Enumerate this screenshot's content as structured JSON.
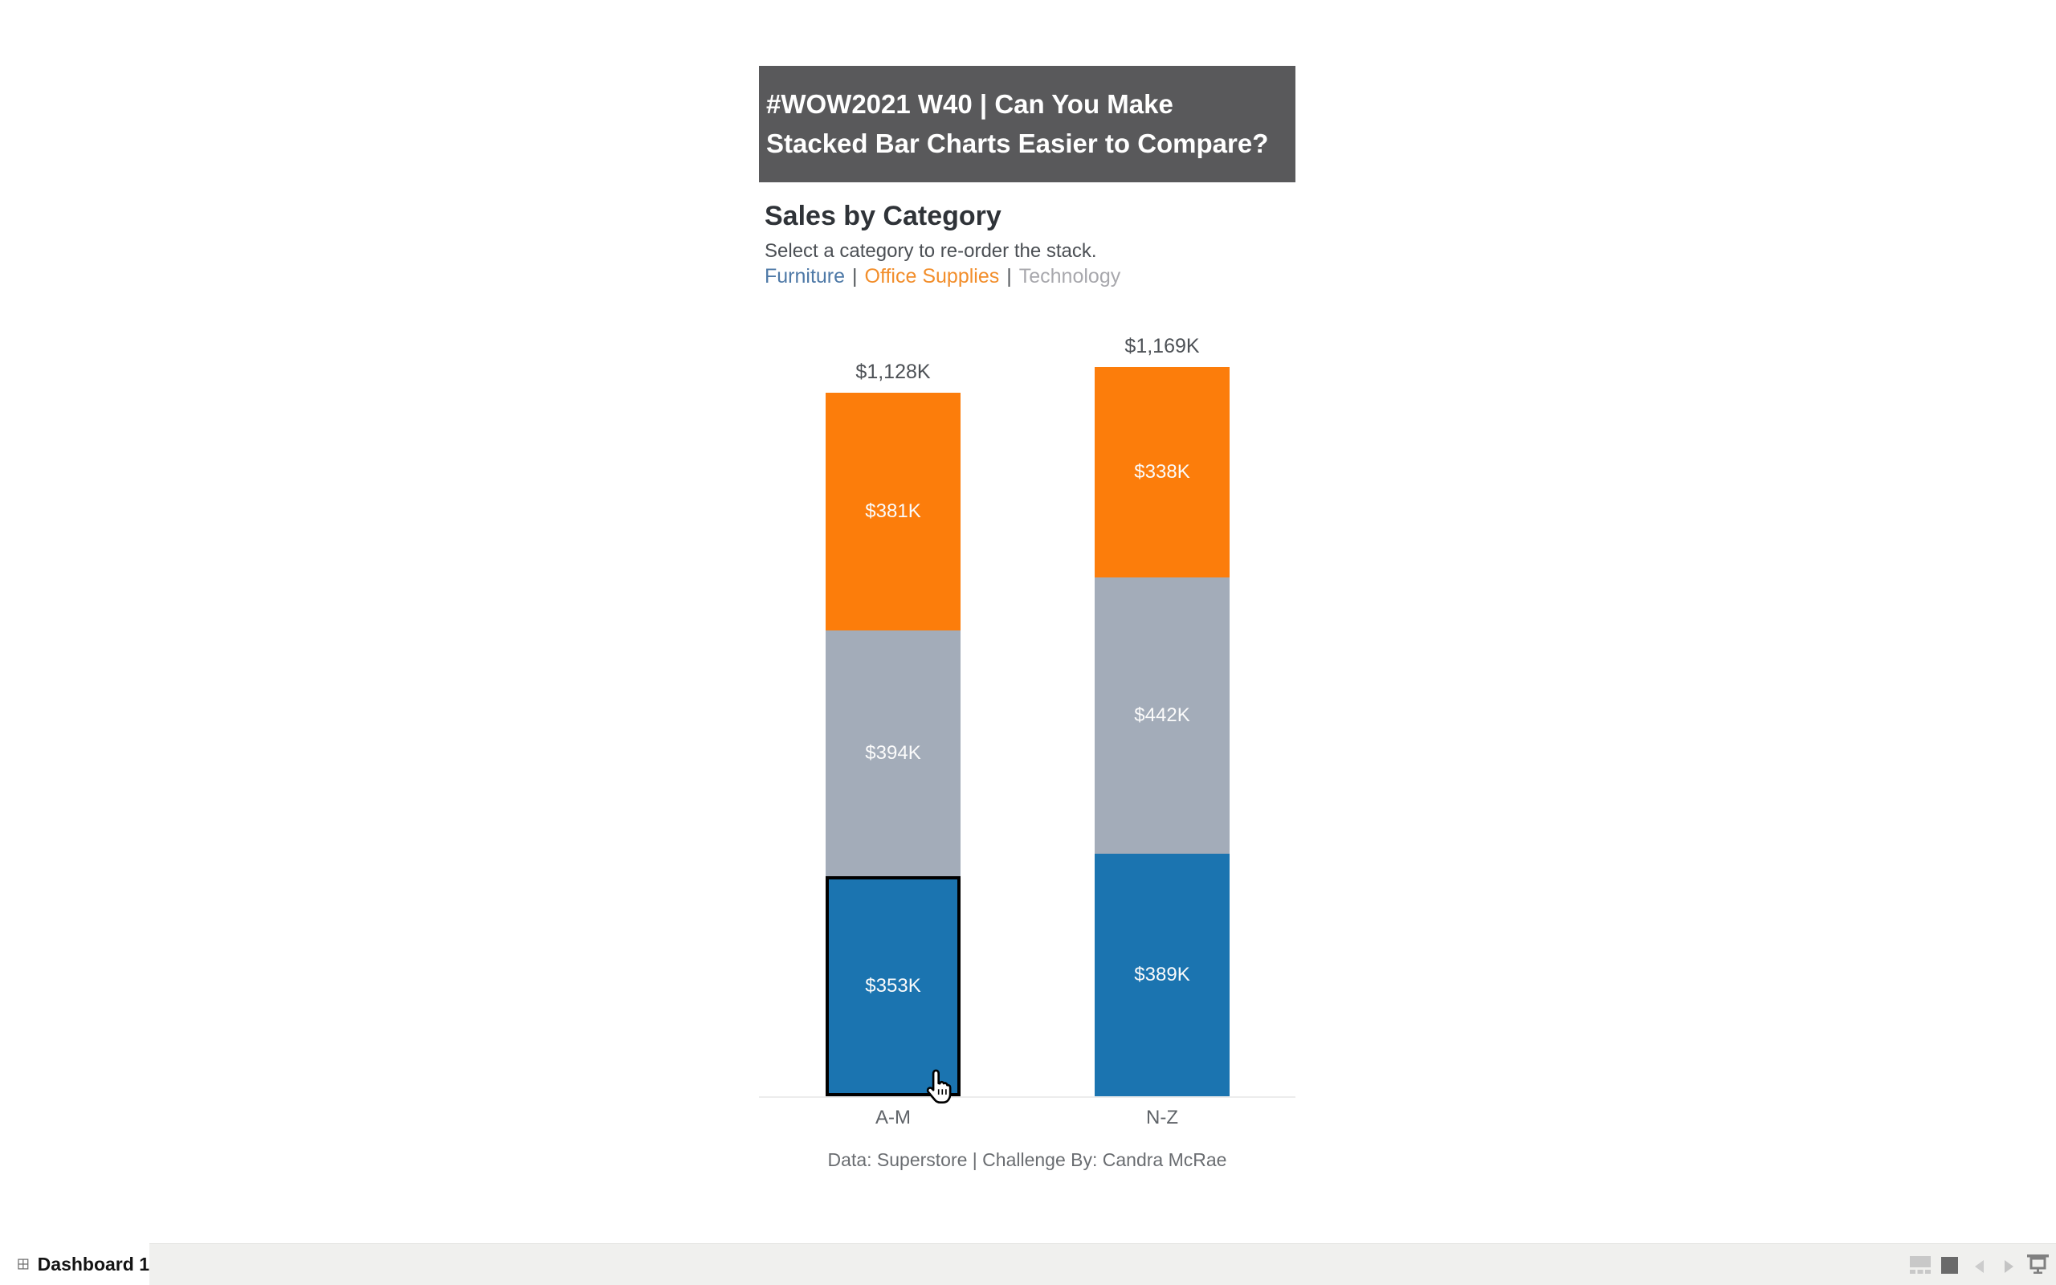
{
  "banner": {
    "line1": "#WOW2021 W40 | Can You Make",
    "line2": "Stacked Bar Charts Easier to Compare?",
    "bg_color": "#59595b",
    "text_color": "#ffffff"
  },
  "header": {
    "title": "Sales by Category",
    "subtitle": "Select a category to re-order the stack."
  },
  "links": {
    "separator": "|",
    "items": [
      {
        "label": "Furniture",
        "color": "#4e79a7"
      },
      {
        "label": "Office Supplies",
        "color": "#f28e2b"
      },
      {
        "label": "Technology",
        "color": "#a8a8ad"
      }
    ]
  },
  "chart_data": {
    "type": "bar",
    "stacked": true,
    "title": "Sales by Category",
    "unit": "$K",
    "categories": [
      "A-M",
      "N-Z"
    ],
    "series": [
      {
        "name": "Office Supplies",
        "color": "#fc7d0b",
        "values": [
          381,
          338
        ],
        "labels": [
          "$381K",
          "$338K"
        ]
      },
      {
        "name": "Technology",
        "color": "#a3acb9",
        "values": [
          394,
          442
        ],
        "labels": [
          "$394K",
          "$442K"
        ]
      },
      {
        "name": "Furniture",
        "color": "#1b74b0",
        "values": [
          353,
          389
        ],
        "labels": [
          "$353K",
          "$389K"
        ]
      }
    ],
    "totals": [
      1128,
      1169
    ],
    "total_labels": [
      "$1,128K",
      "$1,169K"
    ],
    "ylim": [
      0,
      1200
    ],
    "grid": false,
    "legend_position": "links-above-chart",
    "selected_segment": {
      "category": "A-M",
      "series": "Furniture"
    }
  },
  "caption": "Data: Superstore | Challenge By: Candra McRae",
  "statusbar": {
    "tab_label": "Dashboard 1",
    "tab_icon": "dashboard-grid-icon",
    "icons": [
      "filmstrip-icon",
      "current-sheet-square-icon",
      "previous-sheet-arrow-icon",
      "next-sheet-arrow-icon",
      "presentation-mode-icon"
    ]
  },
  "cursor": {
    "type": "hand-pointer"
  }
}
